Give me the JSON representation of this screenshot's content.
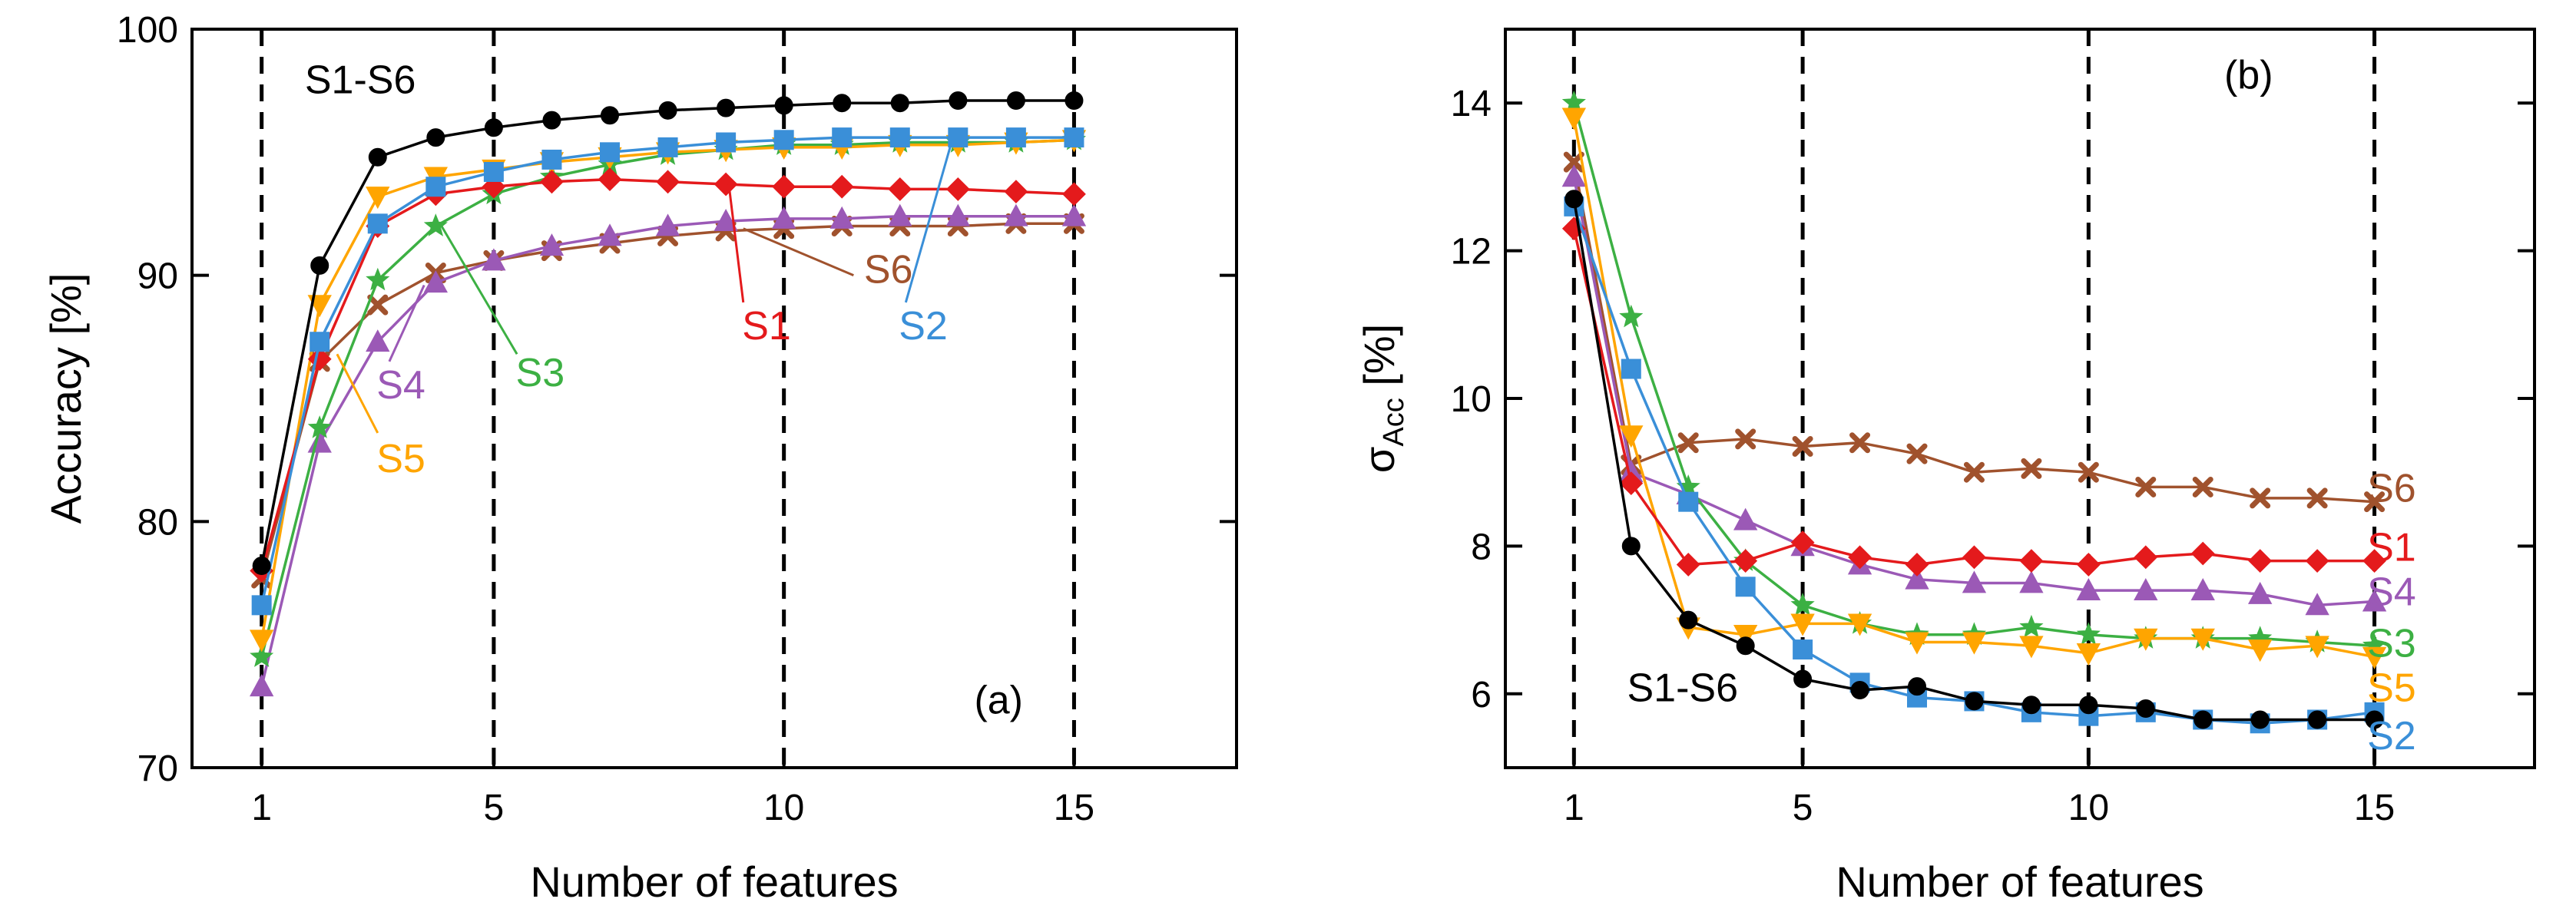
{
  "chart_data": [
    {
      "type": "line",
      "panel_label": "(a)",
      "xlabel": "Number of features",
      "ylabel": "Accuracy [%]",
      "xlim": [
        -0.2,
        17.8
      ],
      "ylim": [
        70,
        100
      ],
      "xticks": [
        1,
        5,
        10,
        15
      ],
      "yticks": [
        70,
        80,
        90,
        100
      ],
      "xtick_labels": [
        "1",
        "5",
        "10",
        "15"
      ],
      "ytick_labels": [
        "70",
        "80",
        "90",
        "100"
      ],
      "vlines": [
        1,
        5,
        10,
        15
      ],
      "x": [
        1,
        2,
        3,
        4,
        5,
        6,
        7,
        8,
        9,
        10,
        11,
        12,
        13,
        14,
        15
      ],
      "series": [
        {
          "name": "S6",
          "color": "#a0522d",
          "marker": "x",
          "values": [
            77.7,
            86.5,
            88.8,
            90.1,
            90.6,
            91.0,
            91.3,
            91.6,
            91.8,
            91.9,
            92.0,
            92.0,
            92.0,
            92.1,
            92.1
          ]
        },
        {
          "name": "S4",
          "color": "#9b59b6",
          "marker": "triangle",
          "values": [
            73.3,
            83.2,
            87.3,
            89.7,
            90.6,
            91.2,
            91.6,
            92.0,
            92.2,
            92.3,
            92.3,
            92.4,
            92.4,
            92.4,
            92.4
          ]
        },
        {
          "name": "S3",
          "color": "#3cb043",
          "marker": "star",
          "values": [
            74.5,
            83.8,
            89.8,
            92.0,
            93.3,
            94.0,
            94.5,
            94.9,
            95.1,
            95.3,
            95.3,
            95.4,
            95.4,
            95.4,
            95.5
          ]
        },
        {
          "name": "S5",
          "color": "#ffa500",
          "marker": "triangle-down",
          "values": [
            75.2,
            88.8,
            93.2,
            94.0,
            94.3,
            94.6,
            94.8,
            95.0,
            95.1,
            95.2,
            95.2,
            95.3,
            95.3,
            95.4,
            95.5
          ]
        },
        {
          "name": "S1",
          "color": "#e41a1c",
          "marker": "diamond",
          "values": [
            78.0,
            86.6,
            92.0,
            93.3,
            93.6,
            93.8,
            93.9,
            93.8,
            93.7,
            93.6,
            93.6,
            93.5,
            93.5,
            93.4,
            93.3
          ]
        },
        {
          "name": "S2",
          "color": "#3a8fd8",
          "marker": "square",
          "values": [
            76.6,
            87.3,
            92.1,
            93.6,
            94.2,
            94.7,
            95.0,
            95.2,
            95.4,
            95.5,
            95.6,
            95.6,
            95.6,
            95.6,
            95.6
          ]
        },
        {
          "name": "S1-S6",
          "color": "#000000",
          "marker": "circle",
          "values": [
            78.2,
            90.4,
            94.8,
            95.6,
            96.0,
            96.3,
            96.5,
            96.7,
            96.8,
            96.9,
            97.0,
            97.0,
            97.1,
            97.1,
            97.1
          ]
        }
      ],
      "annotations": [
        {
          "text": "S1-S6",
          "color": "#000000",
          "x": 2.7,
          "y": 97.4
        },
        {
          "text": "S6",
          "color": "#a0522d",
          "x": 11.8,
          "y": 89.7
        },
        {
          "text": "S1",
          "color": "#e41a1c",
          "x": 9.7,
          "y": 87.4
        },
        {
          "text": "S2",
          "color": "#3a8fd8",
          "x": 12.4,
          "y": 87.4
        },
        {
          "text": "S3",
          "color": "#3cb043",
          "x": 5.8,
          "y": 85.5
        },
        {
          "text": "S4",
          "color": "#9b59b6",
          "x": 3.4,
          "y": 85.0
        },
        {
          "text": "S5",
          "color": "#ffa500",
          "x": 3.4,
          "y": 82.0
        }
      ]
    },
    {
      "type": "line",
      "panel_label": "(b)",
      "xlabel": "Number of features",
      "ylabel": "σ",
      "ylabel_subscript": "Acc",
      "ylabel_suffix": " [%]",
      "xlim": [
        -0.2,
        17.8
      ],
      "ylim": [
        5,
        15
      ],
      "xticks": [
        1,
        5,
        10,
        15
      ],
      "yticks": [
        6,
        8,
        10,
        12,
        14
      ],
      "xtick_labels": [
        "1",
        "5",
        "10",
        "15"
      ],
      "ytick_labels": [
        "6",
        "8",
        "10",
        "12",
        "14"
      ],
      "vlines": [
        1,
        5,
        10,
        15
      ],
      "x": [
        1,
        2,
        3,
        4,
        5,
        6,
        7,
        8,
        9,
        10,
        11,
        12,
        13,
        14,
        15
      ],
      "series": [
        {
          "name": "S6",
          "color": "#a0522d",
          "marker": "x",
          "values": [
            13.2,
            9.1,
            9.4,
            9.45,
            9.35,
            9.4,
            9.25,
            9.0,
            9.05,
            9.0,
            8.8,
            8.8,
            8.65,
            8.65,
            8.6
          ]
        },
        {
          "name": "S4",
          "color": "#9b59b6",
          "marker": "triangle",
          "values": [
            13.0,
            9.0,
            8.7,
            8.35,
            8.0,
            7.75,
            7.55,
            7.5,
            7.5,
            7.4,
            7.4,
            7.4,
            7.35,
            7.2,
            7.25
          ]
        },
        {
          "name": "S3",
          "color": "#3cb043",
          "marker": "star",
          "values": [
            14.0,
            11.1,
            8.8,
            7.8,
            7.2,
            6.95,
            6.8,
            6.8,
            6.9,
            6.8,
            6.75,
            6.75,
            6.75,
            6.7,
            6.65
          ]
        },
        {
          "name": "S5",
          "color": "#ffa500",
          "marker": "triangle-down",
          "values": [
            13.8,
            9.5,
            6.9,
            6.8,
            6.95,
            6.95,
            6.7,
            6.7,
            6.65,
            6.55,
            6.75,
            6.75,
            6.6,
            6.65,
            6.5
          ]
        },
        {
          "name": "S1",
          "color": "#e41a1c",
          "marker": "diamond",
          "values": [
            12.3,
            8.85,
            7.75,
            7.8,
            8.05,
            7.85,
            7.75,
            7.85,
            7.8,
            7.75,
            7.85,
            7.9,
            7.8,
            7.8,
            7.8
          ]
        },
        {
          "name": "S2",
          "color": "#3a8fd8",
          "marker": "square",
          "values": [
            12.6,
            10.4,
            8.6,
            7.45,
            6.6,
            6.15,
            5.95,
            5.9,
            5.75,
            5.7,
            5.75,
            5.65,
            5.6,
            5.65,
            5.75
          ]
        },
        {
          "name": "S1-S6",
          "color": "#000000",
          "marker": "circle",
          "values": [
            12.7,
            8.0,
            7.0,
            6.65,
            6.2,
            6.05,
            6.1,
            5.9,
            5.85,
            5.85,
            5.8,
            5.65,
            5.65,
            5.65,
            5.65
          ]
        }
      ],
      "annotations": [
        {
          "text": "S1-S6",
          "color": "#000000",
          "x": 2.9,
          "y": 5.9
        },
        {
          "text": "S6",
          "color": "#a0522d",
          "x": 15.3,
          "y": 8.6
        },
        {
          "text": "S1",
          "color": "#e41a1c",
          "x": 15.3,
          "y": 7.8
        },
        {
          "text": "S4",
          "color": "#9b59b6",
          "x": 15.3,
          "y": 7.2
        },
        {
          "text": "S3",
          "color": "#3cb043",
          "x": 15.3,
          "y": 6.5
        },
        {
          "text": "S5",
          "color": "#ffa500",
          "x": 15.3,
          "y": 5.9
        },
        {
          "text": "S2",
          "color": "#3a8fd8",
          "x": 15.3,
          "y": 5.25
        }
      ]
    }
  ]
}
